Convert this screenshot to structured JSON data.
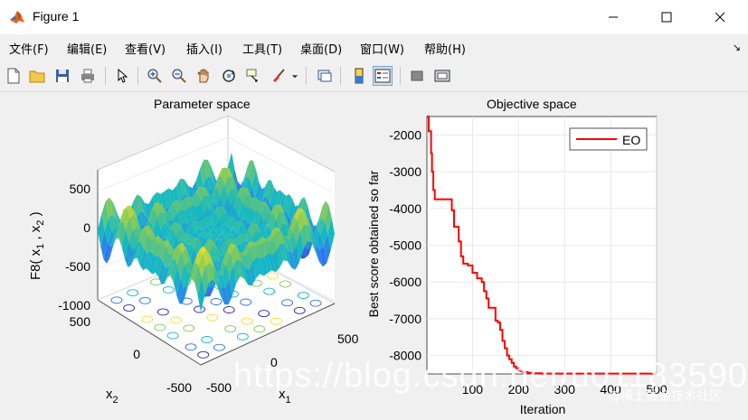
{
  "window": {
    "title": "Figure 1",
    "controls": [
      "minimize-icon",
      "maximize-icon",
      "close-icon"
    ]
  },
  "menu": {
    "items": [
      "文件(F)",
      "编辑(E)",
      "查看(V)",
      "插入(I)",
      "工具(T)",
      "桌面(D)",
      "窗口(W)",
      "帮助(H)"
    ],
    "overflow": "↘"
  },
  "toolbar": {
    "icons": [
      "new-figure-icon",
      "open-file-icon",
      "save-icon",
      "print-icon",
      "edit-plot-arrow-icon",
      "zoom-in-icon",
      "zoom-out-icon",
      "pan-hand-icon",
      "rotate-3d-icon",
      "data-cursor-icon",
      "brush-icon",
      "brush-dropdown-icon",
      "link-plot-icon",
      "colorbar-icon",
      "legend-icon",
      "hide-plot-tools-icon",
      "show-plot-tools-icon"
    ],
    "active": "legend-icon"
  },
  "left_plot": {
    "title": "Parameter space",
    "zlabel": "F8( x",
    "zlabel_sub1": "1",
    "zlabel_mid": " , x",
    "zlabel_sub2": "2",
    "zlabel_end": " )",
    "xlabel": "x",
    "xlabel_sub": "1",
    "ylabel": "x",
    "ylabel_sub": "2",
    "z_ticks": [
      "500",
      "0",
      "-500",
      "-1000"
    ],
    "y_ticks": [
      "500",
      "0",
      "-500"
    ],
    "x_ticks": [
      "-500",
      "0",
      "500"
    ]
  },
  "right_plot": {
    "title": "Objective space",
    "xlabel": "Iteration",
    "ylabel": "Best score obtained so far",
    "legend": "EO",
    "y_ticks": [
      "-2000",
      "-3000",
      "-4000",
      "-5000",
      "-6000",
      "-7000",
      "-8000"
    ],
    "x_ticks": [
      "100",
      "200",
      "300",
      "400",
      "500"
    ]
  },
  "watermark": {
    "url": "https://blog.csdn.net/u011835903",
    "site": "@稀土掘金技术社区"
  },
  "chart_data": [
    {
      "type": "surface",
      "title": "Parameter space",
      "xlabel": "x1",
      "ylabel": "x2",
      "zlabel": "F8( x1 , x2 )",
      "xlim": [
        -500,
        500
      ],
      "ylim": [
        -500,
        500
      ],
      "zlim": [
        -1000,
        800
      ],
      "colormap": "parula",
      "contour_projection": true
    },
    {
      "type": "line",
      "title": "Objective space",
      "xlabel": "Iteration",
      "ylabel": "Best score obtained so far",
      "xlim": [
        1,
        500
      ],
      "ylim": [
        -8500,
        -1500
      ],
      "grid": true,
      "legend_position": "top-right",
      "series": [
        {
          "name": "EO",
          "color": "#ff0000",
          "x": [
            1,
            5,
            10,
            12,
            15,
            18,
            20,
            22,
            25,
            28,
            30,
            35,
            40,
            45,
            50,
            55,
            60,
            65,
            70,
            75,
            80,
            85,
            90,
            95,
            100,
            110,
            120,
            125,
            130,
            135,
            140,
            145,
            150,
            155,
            160,
            165,
            170,
            175,
            180,
            185,
            190,
            195,
            200,
            205,
            210,
            220,
            230,
            240,
            250,
            260,
            280,
            300,
            350,
            400,
            450,
            500
          ],
          "y": [
            -1500,
            -1900,
            -2500,
            -3000,
            -3500,
            -3750,
            -3750,
            -3750,
            -3750,
            -3750,
            -3750,
            -3750,
            -3750,
            -3750,
            -3750,
            -4050,
            -4500,
            -4500,
            -4900,
            -5300,
            -5500,
            -5500,
            -5550,
            -5550,
            -5750,
            -5900,
            -6000,
            -6250,
            -6450,
            -6700,
            -6700,
            -6700,
            -7050,
            -7100,
            -7300,
            -7600,
            -7800,
            -8000,
            -8100,
            -8200,
            -8300,
            -8350,
            -8400,
            -8420,
            -8450,
            -8470,
            -8480,
            -8480,
            -8490,
            -8490,
            -8490,
            -8490,
            -8490,
            -8490,
            -8490,
            -8490
          ]
        }
      ]
    }
  ]
}
